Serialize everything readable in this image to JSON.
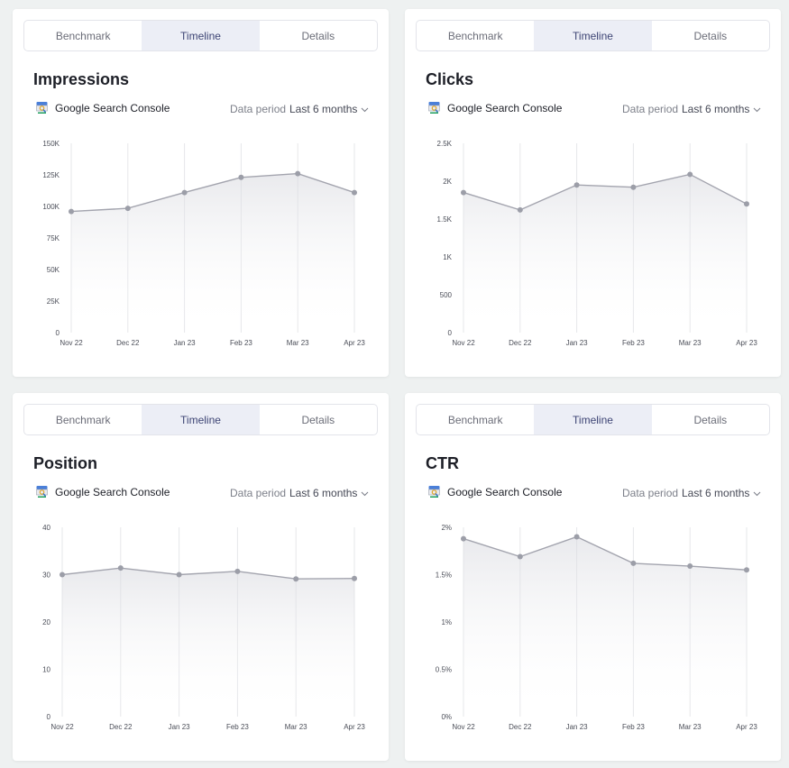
{
  "common": {
    "tabs": [
      "Benchmark",
      "Timeline",
      "Details"
    ],
    "active_tab": 1,
    "source_label": "Google Search Console",
    "data_period_label": "Data period",
    "period_value": "Last 6 months"
  },
  "colors": {
    "line": "#a3a4ae",
    "point": "#9c9ea8",
    "grid": "#e6e7ea",
    "active_tab_bg": "#eceef6"
  },
  "chart_data": [
    {
      "type": "area",
      "title": "Impressions",
      "categories": [
        "Nov 22",
        "Dec 22",
        "Jan 23",
        "Feb 23",
        "Mar 23",
        "Apr 23"
      ],
      "values": [
        96000,
        98500,
        111000,
        123000,
        126000,
        111000
      ],
      "ylim": [
        0,
        150000
      ],
      "yticks": [
        0,
        25000,
        50000,
        75000,
        100000,
        125000,
        150000
      ],
      "yticklabels": [
        "0",
        "25K",
        "50K",
        "75K",
        "100K",
        "125K",
        "150K"
      ],
      "grid": "vertical"
    },
    {
      "type": "area",
      "title": "Clicks",
      "categories": [
        "Nov 22",
        "Dec 22",
        "Jan 23",
        "Feb 23",
        "Mar 23",
        "Apr 23"
      ],
      "values": [
        1850,
        1620,
        1950,
        1920,
        2090,
        1700
      ],
      "ylim": [
        0,
        2500
      ],
      "yticks": [
        0,
        500,
        1000,
        1500,
        2000,
        2500
      ],
      "yticklabels": [
        "0",
        "500",
        "1K",
        "1.5K",
        "2K",
        "2.5K"
      ],
      "grid": "vertical"
    },
    {
      "type": "area",
      "title": "Position",
      "categories": [
        "Nov 22",
        "Dec 22",
        "Jan 23",
        "Feb 23",
        "Mar 23",
        "Apr 23"
      ],
      "values": [
        30.0,
        31.4,
        30.0,
        30.7,
        29.1,
        29.2
      ],
      "ylim": [
        0,
        40
      ],
      "yticks": [
        0,
        10,
        20,
        30,
        40
      ],
      "yticklabels": [
        "0",
        "10",
        "20",
        "30",
        "40"
      ],
      "grid": "vertical"
    },
    {
      "type": "area",
      "title": "CTR",
      "categories": [
        "Nov 22",
        "Dec 22",
        "Jan 23",
        "Feb 23",
        "Mar 23",
        "Apr 23"
      ],
      "values": [
        1.88,
        1.69,
        1.9,
        1.62,
        1.59,
        1.55
      ],
      "ylim": [
        0,
        2
      ],
      "yticks": [
        0,
        0.5,
        1,
        1.5,
        2
      ],
      "yticklabels": [
        "0%",
        "0.5%",
        "1%",
        "1.5%",
        "2%"
      ],
      "grid": "vertical"
    }
  ]
}
